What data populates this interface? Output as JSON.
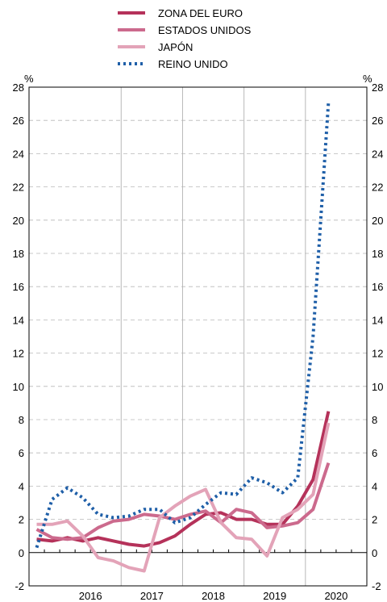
{
  "chart_data": {
    "type": "line",
    "title": "",
    "xlabel": "",
    "ylabel": "%",
    "ylabel_right": "%",
    "ylim": [
      -2,
      28
    ],
    "yticks": [
      -2,
      0,
      2,
      4,
      6,
      8,
      10,
      12,
      14,
      16,
      18,
      20,
      22,
      24,
      26,
      28
    ],
    "yticks_right": [
      "-2",
      "0",
      "2",
      "4",
      "6",
      "8",
      "10",
      "12",
      "14",
      "16",
      "18",
      "20",
      "22",
      "24",
      "26",
      "28"
    ],
    "xlim": [
      2015.5,
      2021.0
    ],
    "year_ticks": [
      "2016",
      "2017",
      "2018",
      "2019",
      "2020"
    ],
    "grid": "horizontal dashed, vertical solid at year boundaries",
    "legend_position": "top-center",
    "series": [
      {
        "name": "ZONA DEL EURO",
        "color": "#b5325a",
        "style": "solid",
        "x": [
          2015.625,
          2015.875,
          2016.125,
          2016.375,
          2016.625,
          2016.875,
          2017.125,
          2017.375,
          2017.625,
          2017.875,
          2018.125,
          2018.375,
          2018.625,
          2018.875,
          2019.125,
          2019.375,
          2019.625,
          2019.875,
          2020.125,
          2020.375
        ],
        "y": [
          0.8,
          0.7,
          0.9,
          0.7,
          0.9,
          0.7,
          0.5,
          0.4,
          0.6,
          1.0,
          1.7,
          2.3,
          2.4,
          2.0,
          2.0,
          1.7,
          1.7,
          2.8,
          4.4,
          8.5
        ]
      },
      {
        "name": "ESTADOS UNIDOS",
        "color": "#cc6a8d",
        "style": "solid",
        "x": [
          2015.625,
          2015.875,
          2016.125,
          2016.375,
          2016.625,
          2016.875,
          2017.125,
          2017.375,
          2017.625,
          2017.875,
          2018.125,
          2018.375,
          2018.625,
          2018.875,
          2019.125,
          2019.375,
          2019.625,
          2019.875,
          2020.125,
          2020.375
        ],
        "y": [
          1.4,
          0.9,
          0.8,
          0.9,
          1.5,
          1.9,
          2.0,
          2.3,
          2.2,
          2.0,
          2.3,
          2.5,
          1.8,
          2.6,
          2.4,
          1.5,
          1.6,
          1.8,
          2.6,
          5.4
        ]
      },
      {
        "name": "JAPÓN",
        "color": "#e3a3b8",
        "style": "solid",
        "x": [
          2015.625,
          2015.875,
          2016.125,
          2016.375,
          2016.625,
          2016.875,
          2017.125,
          2017.375,
          2017.625,
          2017.875,
          2018.125,
          2018.375,
          2018.625,
          2018.875,
          2019.125,
          2019.375,
          2019.625,
          2019.875,
          2020.125,
          2020.375
        ],
        "y": [
          1.7,
          1.7,
          1.9,
          1.0,
          -0.3,
          -0.5,
          -0.9,
          -1.1,
          2.1,
          2.8,
          3.4,
          3.8,
          1.8,
          0.9,
          0.8,
          -0.2,
          2.1,
          2.6,
          3.5,
          7.8
        ]
      },
      {
        "name": "REINO UNIDO",
        "color": "#1f5fa8",
        "style": "dotted",
        "x": [
          2015.625,
          2015.875,
          2016.125,
          2016.375,
          2016.625,
          2016.875,
          2017.125,
          2017.375,
          2017.625,
          2017.875,
          2018.125,
          2018.375,
          2018.625,
          2018.875,
          2019.125,
          2019.375,
          2019.625,
          2019.875,
          2020.125,
          2020.375
        ],
        "y": [
          0.3,
          3.2,
          3.9,
          3.3,
          2.3,
          2.1,
          2.2,
          2.6,
          2.6,
          1.8,
          2.1,
          2.9,
          3.6,
          3.5,
          4.5,
          4.2,
          3.6,
          4.5,
          13.0,
          27.1
        ]
      }
    ]
  }
}
